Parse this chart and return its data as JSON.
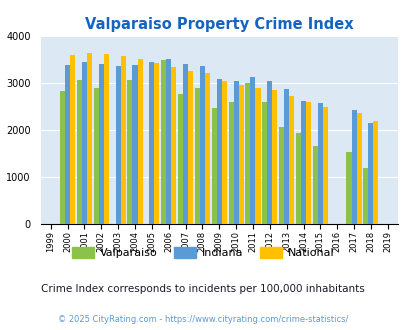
{
  "title": "Valparaiso Property Crime Index",
  "years": [
    1999,
    2000,
    2001,
    2002,
    2003,
    2004,
    2005,
    2006,
    2007,
    2008,
    2009,
    2010,
    2011,
    2012,
    2013,
    2014,
    2015,
    2016,
    2017,
    2018,
    2019
  ],
  "valparaiso": [
    null,
    2840,
    3070,
    2890,
    null,
    3070,
    null,
    3500,
    2780,
    2900,
    2480,
    2610,
    3010,
    2600,
    2080,
    1940,
    1660,
    null,
    1530,
    1200,
    null
  ],
  "indiana": [
    null,
    3400,
    3460,
    3410,
    3360,
    3380,
    3450,
    3510,
    3420,
    3360,
    3090,
    3040,
    3140,
    3040,
    2870,
    2620,
    2590,
    null,
    2430,
    2160,
    null
  ],
  "national": [
    null,
    3610,
    3640,
    3620,
    3590,
    3510,
    3430,
    3340,
    3270,
    3210,
    3040,
    2970,
    2900,
    2860,
    2730,
    2600,
    2490,
    null,
    2360,
    2200,
    null
  ],
  "colors": {
    "valparaiso": "#8bc34a",
    "indiana": "#5b9bd5",
    "national": "#ffc000"
  },
  "plot_bg": "#dce9f5",
  "ylim": [
    0,
    4000
  ],
  "yticks": [
    0,
    1000,
    2000,
    3000,
    4000
  ],
  "subtitle": "Crime Index corresponds to incidents per 100,000 inhabitants",
  "footer": "© 2025 CityRating.com - https://www.cityrating.com/crime-statistics/",
  "title_color": "#1565c0",
  "subtitle_color": "#1a1a2e",
  "footer_color": "#5b9bd5",
  "legend_labels": [
    "Valparaiso",
    "Indiana",
    "National"
  ]
}
